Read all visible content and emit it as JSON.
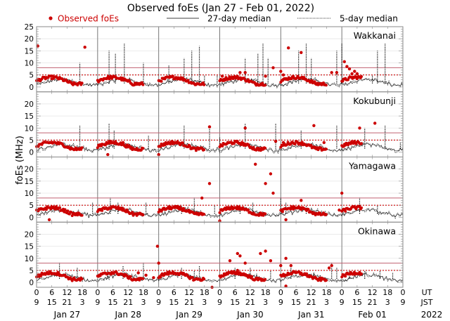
{
  "chart_data": {
    "type": "scatter",
    "title": "Observed foEs (Jan 27 - Feb 01, 2022)",
    "ylabel": "foEs (MHz)",
    "xlabel": "",
    "legend": {
      "placement": "top",
      "entries": [
        {
          "label": "Observed foEs",
          "style": "red-dot",
          "color": "#cc0000"
        },
        {
          "label": "27-day median",
          "style": "solid-line",
          "color": "#000000"
        },
        {
          "label": "5-day median",
          "style": "dotted-line",
          "color": "#000000"
        }
      ]
    },
    "x_range_hours": [
      0,
      144
    ],
    "ylim": [
      -2,
      25
    ],
    "yticks": [
      0,
      5,
      10,
      15,
      20,
      25
    ],
    "x_ticks_ut": [
      "0",
      "6",
      "12",
      "18",
      "0",
      "6",
      "12",
      "18",
      "0",
      "6",
      "12",
      "18",
      "0",
      "6",
      "12",
      "18",
      "0",
      "6",
      "12",
      "18",
      "0",
      "6",
      "12",
      "18",
      "0"
    ],
    "x_ticks_jst": [
      "9",
      "15",
      "21",
      "3",
      "9",
      "15",
      "21",
      "3",
      "9",
      "15",
      "21",
      "3",
      "9",
      "15",
      "21",
      "3",
      "9",
      "15",
      "21",
      "3",
      "9",
      "15",
      "21",
      "3",
      "9"
    ],
    "x_tick_row_labels": {
      "ut": "UT",
      "jst": "JST"
    },
    "day_labels": [
      "Jan 27",
      "Jan 28",
      "Jan 29",
      "Jan 30",
      "Jan 31",
      "Feb 01"
    ],
    "year_label": "2022",
    "reference_lines": {
      "solid_red_level": 8,
      "dotted_red_level": 5,
      "solid_color": "#c06070",
      "dotted_color": "#cc0000"
    },
    "panels": [
      {
        "station": "Wakkanai",
        "show_top_tick": true,
        "observed_outliers": [
          [
            0.5,
            17
          ],
          [
            19,
            16.5
          ],
          [
            82,
            6
          ],
          [
            99,
            16.2
          ],
          [
            104,
            14.3
          ],
          [
            121,
            10.5
          ],
          [
            122,
            8.5
          ],
          [
            123,
            7.5
          ],
          [
            124,
            5.5
          ],
          [
            125,
            6.5
          ],
          [
            126,
            5.5
          ],
          [
            73,
            4.5
          ],
          [
            80,
            6
          ],
          [
            90,
            4.5
          ],
          [
            93,
            8
          ],
          [
            96,
            6.5
          ],
          [
            97,
            5
          ],
          [
            116,
            6
          ],
          [
            118,
            6
          ]
        ],
        "spike_hours_5day": [
          [
            17,
            10
          ],
          [
            28.5,
            15
          ],
          [
            31,
            14
          ],
          [
            34.5,
            18
          ],
          [
            42,
            10
          ],
          [
            52,
            9
          ],
          [
            58,
            12
          ],
          [
            61,
            15
          ],
          [
            64,
            17
          ],
          [
            66,
            5
          ],
          [
            71,
            5
          ],
          [
            82,
            12
          ],
          [
            87,
            14
          ],
          [
            89,
            18
          ],
          [
            91,
            12
          ],
          [
            103,
            15
          ],
          [
            106,
            18
          ],
          [
            108,
            12
          ],
          [
            118,
            15
          ],
          [
            120,
            18
          ],
          [
            134,
            15
          ],
          [
            137,
            18
          ],
          [
            132,
            5
          ]
        ],
        "observed_days": [
          0,
          1,
          2,
          3,
          4,
          5
        ]
      },
      {
        "station": "Kokubunji",
        "show_top_tick": false,
        "observed_outliers": [
          [
            28,
            -1
          ],
          [
            48,
            -1
          ],
          [
            68,
            10.5
          ],
          [
            34,
            4
          ],
          [
            27,
            3
          ],
          [
            82,
            10
          ],
          [
            94,
            4.5
          ],
          [
            109,
            11
          ],
          [
            127,
            10
          ],
          [
            133,
            12
          ],
          [
            97,
            4
          ],
          [
            113,
            4
          ]
        ],
        "spike_hours_5day": [
          [
            17,
            11
          ],
          [
            28.5,
            12
          ],
          [
            30.5,
            9
          ],
          [
            44,
            7
          ],
          [
            58,
            11
          ],
          [
            68,
            11
          ],
          [
            72,
            6
          ],
          [
            82,
            12
          ],
          [
            94,
            12
          ],
          [
            104,
            9
          ],
          [
            118,
            11
          ],
          [
            129,
            10
          ],
          [
            137,
            11
          ],
          [
            143,
            4
          ]
        ],
        "observed_days": [
          0,
          1,
          2,
          3,
          4,
          5
        ]
      },
      {
        "station": "Yamagawa",
        "show_top_tick": false,
        "observed_outliers": [
          [
            68,
            14
          ],
          [
            65,
            8
          ],
          [
            86,
            22
          ],
          [
            90,
            14
          ],
          [
            93,
            10
          ],
          [
            92,
            18
          ],
          [
            104,
            7
          ],
          [
            120,
            10
          ],
          [
            5,
            -1
          ],
          [
            72,
            -1.5
          ],
          [
            98,
            -1
          ],
          [
            119,
            3
          ]
        ],
        "spike_hours_5day": [
          [
            22,
            6
          ],
          [
            29,
            8
          ],
          [
            32,
            6
          ],
          [
            43,
            6
          ],
          [
            57,
            5
          ],
          [
            62,
            8
          ],
          [
            70,
            5
          ],
          [
            80,
            4
          ],
          [
            85,
            6
          ],
          [
            96,
            8
          ],
          [
            98,
            6
          ],
          [
            106,
            5
          ],
          [
            127,
            8
          ],
          [
            134,
            5
          ]
        ],
        "observed_days": [
          0,
          1,
          2,
          3,
          4,
          5
        ]
      },
      {
        "station": "Okinawa",
        "show_top_tick": false,
        "observed_outliers": [
          [
            47.5,
            15
          ],
          [
            48,
            8
          ],
          [
            69,
            -2
          ],
          [
            76,
            9
          ],
          [
            79,
            12
          ],
          [
            80,
            11
          ],
          [
            82,
            8
          ],
          [
            79,
            5
          ],
          [
            92,
            9
          ],
          [
            96,
            7
          ],
          [
            98,
            10
          ],
          [
            100,
            7
          ],
          [
            115,
            6
          ],
          [
            116,
            7
          ],
          [
            9,
            3
          ],
          [
            46,
            2
          ],
          [
            40,
            4
          ],
          [
            43,
            3
          ],
          [
            88,
            12
          ],
          [
            90,
            13
          ],
          [
            98,
            -1.5
          ]
        ],
        "spike_hours_5day": [
          [
            9,
            8
          ],
          [
            16,
            6
          ],
          [
            28,
            5
          ],
          [
            34,
            7
          ],
          [
            42,
            8
          ],
          [
            57,
            6
          ],
          [
            62,
            5
          ],
          [
            64,
            7
          ],
          [
            78,
            6
          ],
          [
            84,
            6
          ],
          [
            92,
            5
          ],
          [
            100,
            7
          ],
          [
            109,
            4
          ],
          [
            116,
            8
          ],
          [
            118,
            6
          ],
          [
            123,
            5
          ],
          [
            129,
            5
          ],
          [
            135,
            5
          ],
          [
            140,
            4
          ]
        ],
        "observed_days": [
          0,
          1,
          2,
          3,
          4,
          5
        ]
      }
    ]
  }
}
